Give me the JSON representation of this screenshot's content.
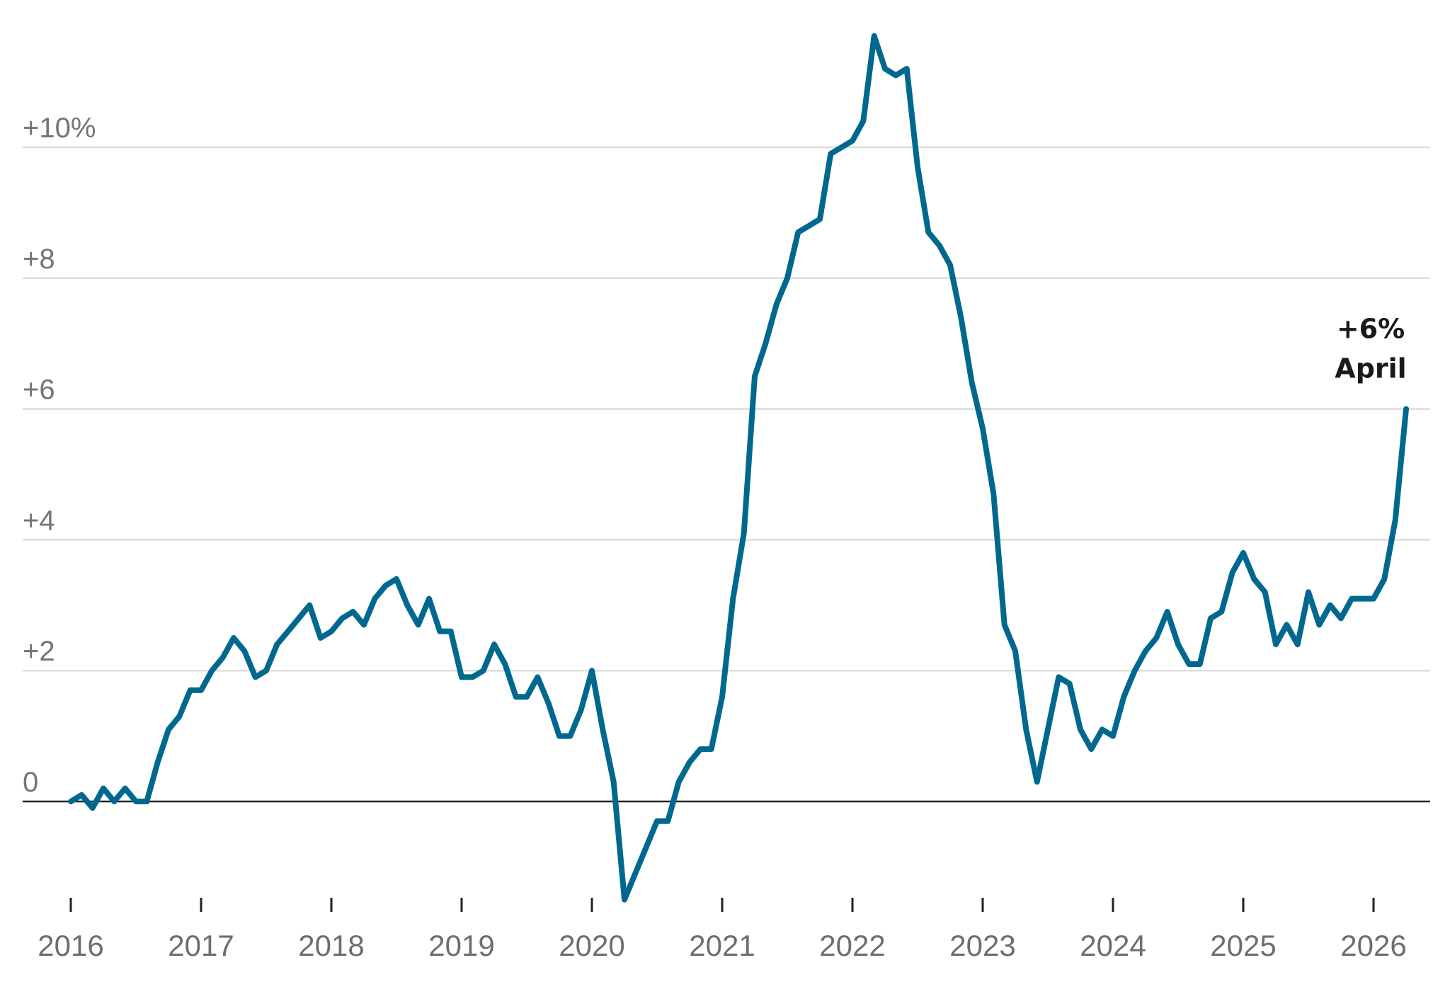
{
  "chart_data": {
    "type": "line",
    "title": "",
    "xlabel": "",
    "ylabel": "",
    "ylim": [
      -1.5,
      11.5
    ],
    "xlim": [
      2016,
      2026.35
    ],
    "y_ticks": [
      {
        "value": 10,
        "label": "+10%"
      },
      {
        "value": 8,
        "label": "+8"
      },
      {
        "value": 6,
        "label": "+6"
      },
      {
        "value": 4,
        "label": "+4"
      },
      {
        "value": 2,
        "label": "+2"
      },
      {
        "value": 0,
        "label": "0"
      }
    ],
    "x_ticks": [
      {
        "value": 2016,
        "label": "2016"
      },
      {
        "value": 2017,
        "label": "2017"
      },
      {
        "value": 2018,
        "label": "2018"
      },
      {
        "value": 2019,
        "label": "2019"
      },
      {
        "value": 2020,
        "label": "2020"
      },
      {
        "value": 2021,
        "label": "2021"
      },
      {
        "value": 2022,
        "label": "2022"
      },
      {
        "value": 2023,
        "label": "2023"
      },
      {
        "value": 2024,
        "label": "2024"
      },
      {
        "value": 2025,
        "label": "2025"
      },
      {
        "value": 2026,
        "label": "2026"
      }
    ],
    "grid": "horizontal",
    "series": [
      {
        "color": "#00688f",
        "start": 2016,
        "step": 0.083333,
        "values": [
          0.0,
          0.1,
          -0.1,
          0.2,
          0.0,
          0.2,
          0.0,
          0.0,
          0.6,
          1.1,
          1.3,
          1.7,
          1.7,
          2.0,
          2.2,
          2.5,
          2.3,
          1.9,
          2.0,
          2.4,
          2.6,
          2.8,
          3.0,
          2.5,
          2.6,
          2.8,
          2.9,
          2.7,
          3.1,
          3.3,
          3.4,
          3.0,
          2.7,
          3.1,
          2.6,
          2.6,
          1.9,
          1.9,
          2.0,
          2.4,
          2.1,
          1.6,
          1.6,
          1.9,
          1.5,
          1.0,
          1.0,
          1.4,
          2.0,
          1.1,
          0.3,
          -1.5,
          -1.1,
          -0.7,
          -0.3,
          -0.3,
          0.3,
          0.6,
          0.8,
          0.8,
          1.6,
          3.1,
          4.1,
          6.5,
          7.0,
          7.6,
          8.0,
          8.7,
          8.8,
          8.9,
          9.9,
          10.0,
          10.1,
          10.4,
          11.7,
          11.2,
          11.1,
          11.2,
          9.7,
          8.7,
          8.5,
          8.2,
          7.4,
          6.4,
          5.7,
          4.7,
          2.7,
          2.3,
          1.1,
          0.3,
          1.1,
          1.9,
          1.8,
          1.1,
          0.8,
          1.1,
          1.0,
          1.6,
          2.0,
          2.3,
          2.5,
          2.9,
          2.4,
          2.1,
          2.1,
          2.8,
          2.9,
          3.5,
          3.8,
          3.4,
          3.2,
          2.4,
          2.7,
          2.4,
          3.2,
          2.7,
          3.0,
          2.8,
          3.1,
          3.1,
          3.1,
          3.4,
          4.3,
          6.0
        ]
      }
    ],
    "annotation": {
      "value_label": "+6%",
      "date_label": "April",
      "x": 2026.25,
      "y": 6.0
    }
  }
}
